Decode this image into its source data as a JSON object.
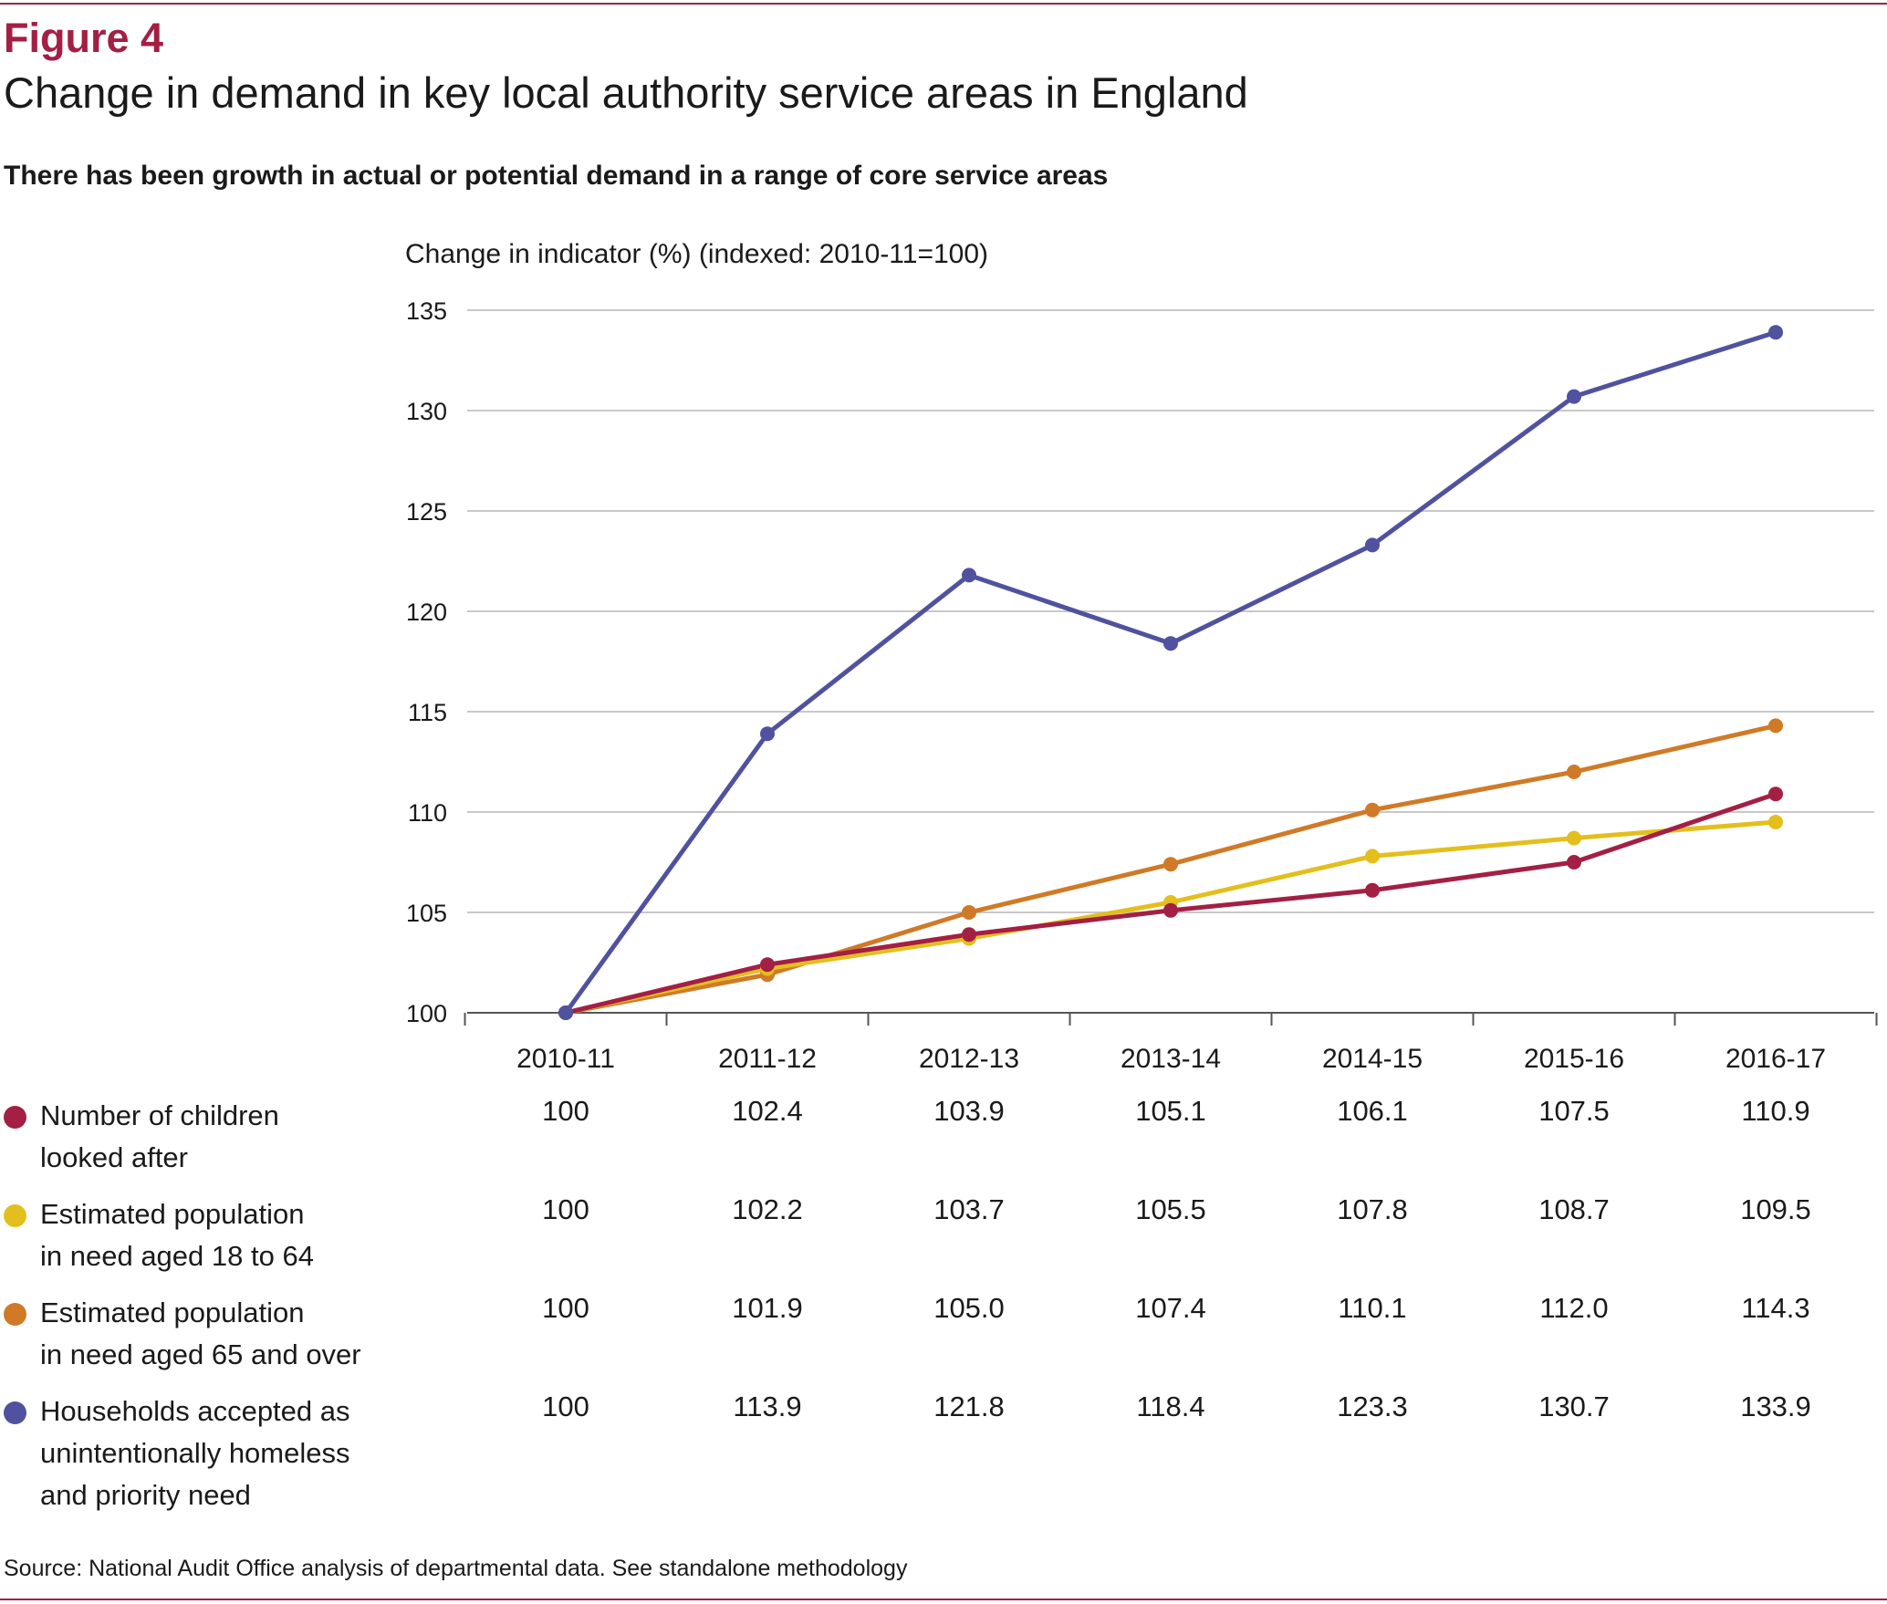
{
  "figure": {
    "label": "Figure 4",
    "title": "Change in demand in key local authority service areas in England",
    "subtitle": "There has been growth in actual or potential demand in a range of core service areas",
    "source": "Source: National Audit Office analysis of departmental data. See standalone methodology"
  },
  "chart_data": {
    "type": "line",
    "ylabel": "Change in indicator (%) (indexed: 2010-11=100)",
    "xlabel": "",
    "ylim": [
      100,
      135
    ],
    "yticks": [
      100,
      105,
      110,
      115,
      120,
      125,
      130,
      135
    ],
    "grid": "horizontal",
    "categories": [
      "2010-11",
      "2011-12",
      "2012-13",
      "2013-14",
      "2014-15",
      "2015-16",
      "2016-17"
    ],
    "series": [
      {
        "key": "children",
        "name": "Number of children looked after",
        "legend_lines": [
          "Number of children",
          "looked after"
        ],
        "color": "#a31f44",
        "values": [
          100,
          102.4,
          103.9,
          105.1,
          106.1,
          107.5,
          110.9
        ],
        "labels": [
          "100",
          "102.4",
          "103.9",
          "105.1",
          "106.1",
          "107.5",
          "110.9"
        ]
      },
      {
        "key": "pop18to64",
        "name": "Estimated population in need aged 18 to 64",
        "legend_lines": [
          "Estimated population",
          "in need aged 18 to 64"
        ],
        "color": "#e3bf1e",
        "values": [
          100,
          102.2,
          103.7,
          105.5,
          107.8,
          108.7,
          109.5
        ],
        "labels": [
          "100",
          "102.2",
          "103.7",
          "105.5",
          "107.8",
          "108.7",
          "109.5"
        ]
      },
      {
        "key": "pop65plus",
        "name": "Estimated population in need aged 65 and over",
        "legend_lines": [
          "Estimated population",
          "in need aged 65 and over"
        ],
        "color": "#d07a27",
        "values": [
          100,
          101.9,
          105.0,
          107.4,
          110.1,
          112.0,
          114.3
        ],
        "labels": [
          "100",
          "101.9",
          "105.0",
          "107.4",
          "110.1",
          "112.0",
          "114.3"
        ]
      },
      {
        "key": "homeless",
        "name": "Households accepted as unintentionally homeless and priority need",
        "legend_lines": [
          "Households accepted as",
          "unintentionally homeless",
          "and priority need"
        ],
        "color": "#50529f",
        "values": [
          100,
          113.9,
          121.8,
          118.4,
          123.3,
          130.7,
          133.9
        ],
        "labels": [
          "100",
          "113.9",
          "121.8",
          "118.4",
          "123.3",
          "130.7",
          "133.9"
        ]
      }
    ]
  }
}
